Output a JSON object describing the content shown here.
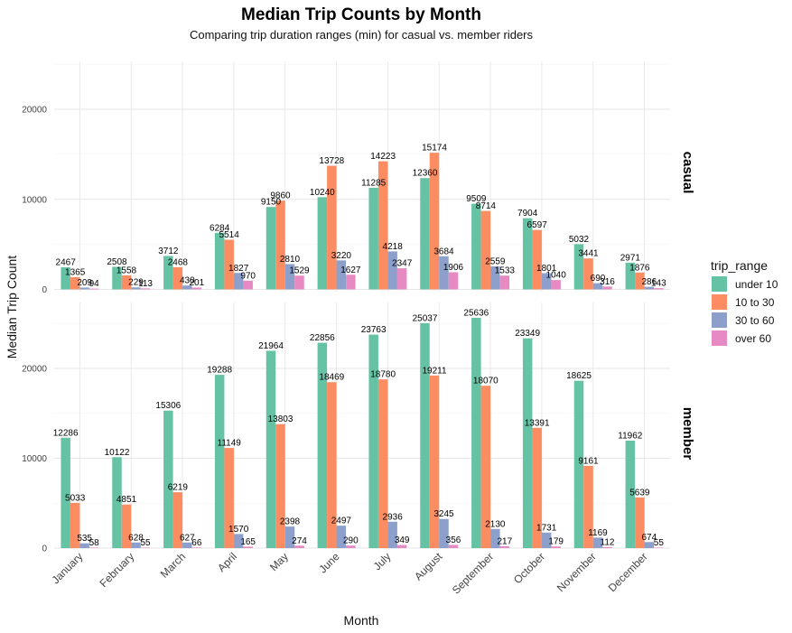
{
  "chart_data": {
    "type": "bar",
    "title": "Median Trip Counts by Month",
    "subtitle": "Comparing trip duration ranges (min) for casual vs. member riders",
    "xlabel": "Month",
    "ylabel": "Median Trip Count",
    "legend": {
      "title": "trip_range",
      "position": "right"
    },
    "grid": true,
    "categories": [
      "January",
      "February",
      "March",
      "April",
      "May",
      "June",
      "July",
      "August",
      "September",
      "October",
      "November",
      "December"
    ],
    "series_names": [
      "under 10",
      "10 to 30",
      "30 to 60",
      "over 60"
    ],
    "colors": {
      "under 10": "#66c2a5",
      "10 to 30": "#fc8d62",
      "30 to 60": "#8da0cb",
      "over 60": "#e78ac3"
    },
    "panels": [
      {
        "name": "casual",
        "ylim": [
          0,
          25000
        ],
        "yticks": [
          0,
          10000,
          20000
        ],
        "series": [
          {
            "name": "under 10",
            "values": [
              2467,
              2508,
              3712,
              6284,
              9150,
              10240,
              11285,
              12360,
              9509,
              7904,
              5032,
              2971
            ]
          },
          {
            "name": "10 to 30",
            "values": [
              1365,
              1558,
              2468,
              5514,
              9860,
              13728,
              14223,
              15174,
              8714,
              6597,
              3441,
              1876
            ]
          },
          {
            "name": "30 to 60",
            "values": [
              209,
              229,
              430,
              1827,
              2810,
              3220,
              4218,
              3684,
              2559,
              1801,
              690,
              286
            ]
          },
          {
            "name": "over 60",
            "values": [
              94,
              113,
              201,
              970,
              1529,
              1627,
              2347,
              1906,
              1533,
              1040,
              316,
              143
            ]
          }
        ]
      },
      {
        "name": "member",
        "ylim": [
          0,
          25000
        ],
        "yticks": [
          0,
          10000,
          20000
        ],
        "series": [
          {
            "name": "under 10",
            "values": [
              12286,
              10122,
              15306,
              19288,
              21964,
              22856,
              23763,
              25037,
              25636,
              23349,
              18625,
              11962
            ]
          },
          {
            "name": "10 to 30",
            "values": [
              5033,
              4851,
              6219,
              11149,
              13803,
              18469,
              18780,
              19211,
              18070,
              13391,
              9161,
              5639
            ]
          },
          {
            "name": "30 to 60",
            "values": [
              535,
              628,
              627,
              1570,
              2398,
              2497,
              2936,
              3245,
              2130,
              1731,
              1169,
              674
            ]
          },
          {
            "name": "over 60",
            "values": [
              58,
              55,
              66,
              165,
              274,
              290,
              349,
              356,
              217,
              179,
              112,
              55
            ]
          }
        ]
      }
    ]
  }
}
